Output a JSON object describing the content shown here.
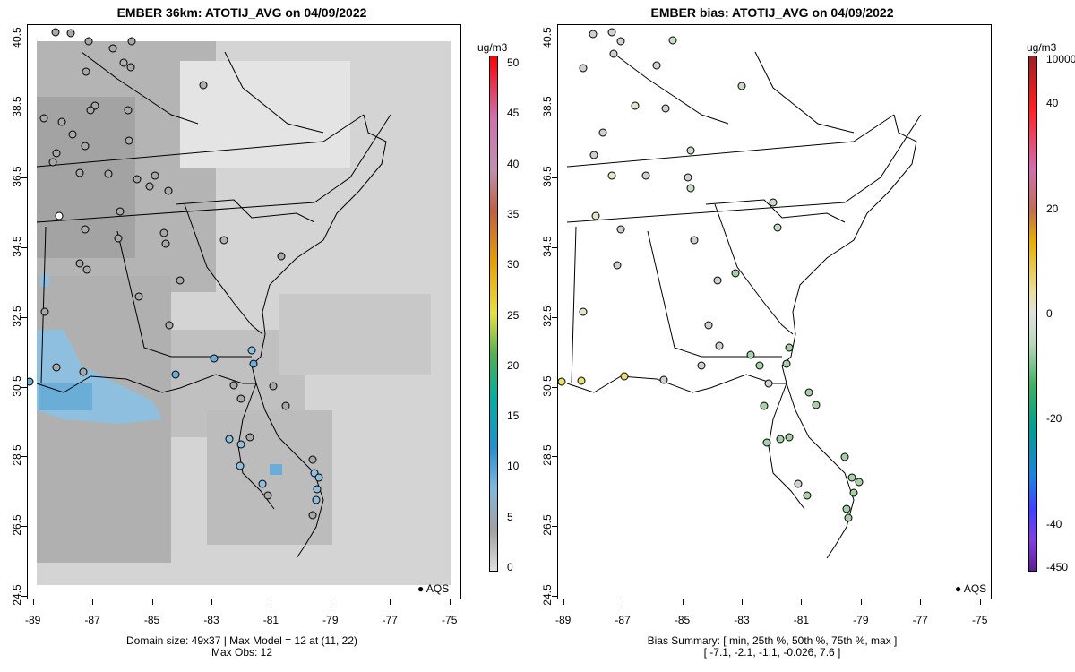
{
  "left_panel": {
    "title": "EMBER 36km: ATOTIJ_AVG on 04/09/2022",
    "footer_line1": "Domain size: 49x37 | Max Model = 12 at (11, 22)",
    "footer_line2": "Max Obs: 12",
    "colorbar_unit": "ug/m3",
    "colorbar_ticks": [
      "50",
      "45",
      "40",
      "35",
      "30",
      "25",
      "20",
      "15",
      "10",
      "5",
      "0"
    ],
    "legend_label": "AQS"
  },
  "right_panel": {
    "title": "EMBER bias: ATOTIJ_AVG on 04/09/2022",
    "footer_line1": "Bias Summary: [ min, 25th %, 50th %, 75th %, max ]",
    "footer_line2": "[ -7.1,   -2.1,   -1.1,   -0.026,   7.6 ]",
    "colorbar_unit": "ug/m3",
    "colorbar_ticks": [
      "10000",
      "40",
      "20",
      "0",
      "-20",
      "-40",
      "-450"
    ],
    "legend_label": "AQS"
  },
  "axes": {
    "x_ticks": [
      "-89",
      "-87",
      "-85",
      "-83",
      "-81",
      "-79",
      "-77",
      "-75"
    ],
    "y_ticks": [
      "40.5",
      "38.5",
      "36.5",
      "34.5",
      "32.5",
      "30.5",
      "28.5",
      "26.5",
      "24.5"
    ],
    "lon_range": [
      -89.2,
      -74.6
    ],
    "lat_range": [
      24.4,
      40.9
    ]
  },
  "colors": {
    "model_gray_dark": "#9a9a9a",
    "model_gray_mid": "#b4b4b4",
    "model_gray_light": "#d4d4d4",
    "model_high_blue": "#6aaed8",
    "bias_green": "#a8d0a8",
    "bias_neutral": "#d0d0d0",
    "bias_yellow": "#e8e070"
  }
}
